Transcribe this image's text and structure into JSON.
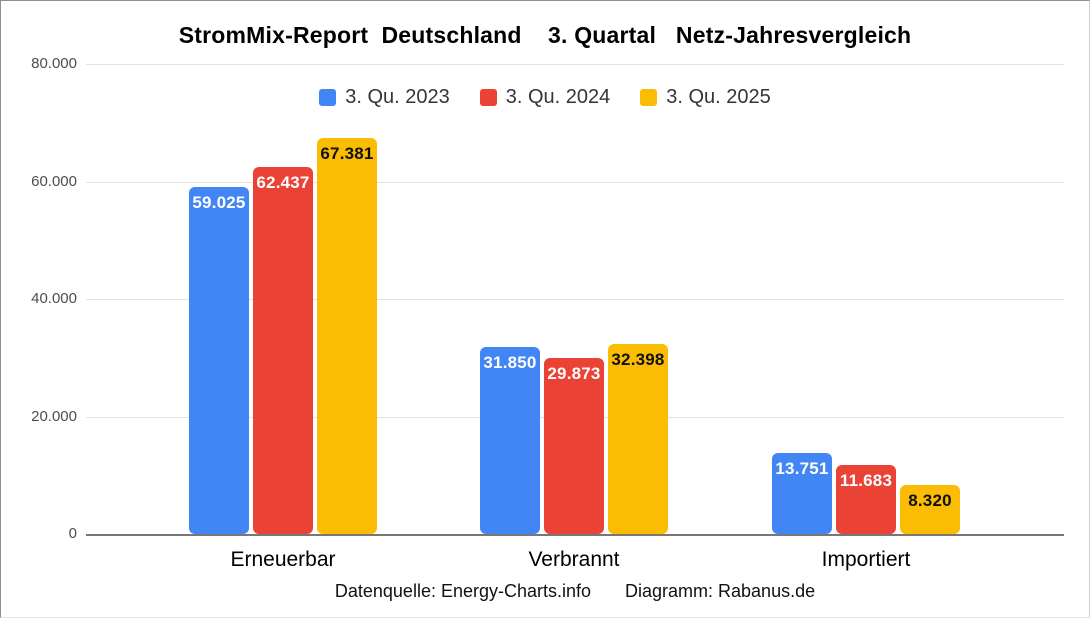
{
  "page": {
    "title": "StromMix-Report  Deutschland    3. Quartal   Netz-Jahresvergleich",
    "footer": {
      "source": "Datenquelle: Energy-Charts.info",
      "credit": "Diagramm: Rabanus.de"
    }
  },
  "chart_data": {
    "type": "bar",
    "title": "StromMix-Report Deutschland 3. Quartal Netz-Jahresvergleich",
    "categories": [
      "Erneuerbar",
      "Verbrannt",
      "Importiert"
    ],
    "series": [
      {
        "name": "3. Qu. 2023",
        "color": "#4285F4",
        "label_color": "#ffffff",
        "values": [
          59025,
          31850,
          13751
        ],
        "labels": [
          "59.025",
          "31.850",
          "13.751"
        ]
      },
      {
        "name": "3. Qu. 2024",
        "color": "#EA4335",
        "label_color": "#ffffff",
        "values": [
          62437,
          29873,
          11683
        ],
        "labels": [
          "62.437",
          "29.873",
          "11.683"
        ]
      },
      {
        "name": "3. Qu. 2025",
        "color": "#FBBC04",
        "label_color": "#111111",
        "values": [
          67381,
          32398,
          8320
        ],
        "labels": [
          "67.381",
          "32.398",
          "8.320"
        ]
      }
    ],
    "y_axis": {
      "min": 0,
      "max": 80000,
      "ticks": [
        {
          "label": "0",
          "value": 0
        },
        {
          "label": "20.000",
          "value": 20000
        },
        {
          "label": "40.000",
          "value": 40000
        },
        {
          "label": "60.000",
          "value": 60000
        },
        {
          "label": "80.000",
          "value": 80000
        }
      ]
    },
    "legend_position": "top",
    "grid": true,
    "colors": {
      "gridline": "#e2e2e2",
      "axis_line": "#777777",
      "background": "#ffffff"
    }
  }
}
